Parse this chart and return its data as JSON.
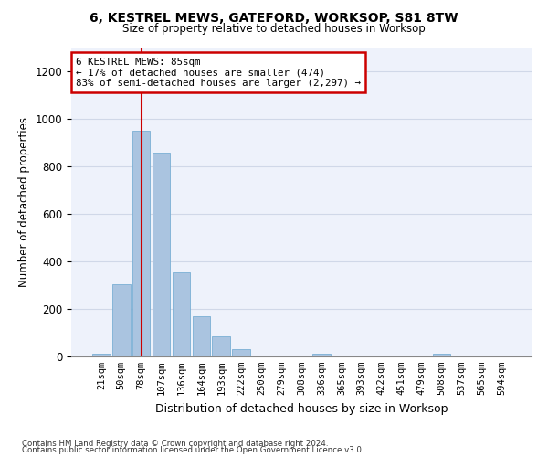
{
  "title_line1": "6, KESTREL MEWS, GATEFORD, WORKSOP, S81 8TW",
  "title_line2": "Size of property relative to detached houses in Worksop",
  "xlabel": "Distribution of detached houses by size in Worksop",
  "ylabel": "Number of detached properties",
  "bar_labels": [
    "21sqm",
    "50sqm",
    "78sqm",
    "107sqm",
    "136sqm",
    "164sqm",
    "193sqm",
    "222sqm",
    "250sqm",
    "279sqm",
    "308sqm",
    "336sqm",
    "365sqm",
    "393sqm",
    "422sqm",
    "451sqm",
    "479sqm",
    "508sqm",
    "537sqm",
    "565sqm",
    "594sqm"
  ],
  "bar_values": [
    13,
    305,
    950,
    860,
    355,
    170,
    85,
    30,
    0,
    0,
    0,
    12,
    0,
    0,
    0,
    0,
    0,
    13,
    0,
    0,
    0
  ],
  "bar_color": "#aac4e0",
  "bar_edge_color": "#7aafd4",
  "grid_color": "#d0d8e8",
  "annotation_line1": "6 KESTREL MEWS: 85sqm",
  "annotation_line2": "← 17% of detached houses are smaller (474)",
  "annotation_line3": "83% of semi-detached houses are larger (2,297) →",
  "annotation_box_color": "#cc0000",
  "vline_color": "#cc0000",
  "vline_x": 2.0,
  "ylim": [
    0,
    1300
  ],
  "yticks": [
    0,
    200,
    400,
    600,
    800,
    1000,
    1200
  ],
  "footnote1": "Contains HM Land Registry data © Crown copyright and database right 2024.",
  "footnote2": "Contains public sector information licensed under the Open Government Licence v3.0.",
  "bg_color": "#eef2fb",
  "fig_bg": "#ffffff"
}
